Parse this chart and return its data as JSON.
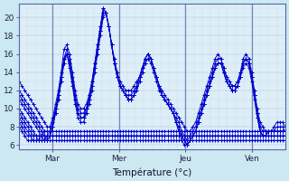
{
  "bg_color": "#cce8f0",
  "plot_bg_color": "#ddeef8",
  "grid_color": "#aabbcc",
  "line_color": "#0000cc",
  "xlabel": "Température (°c)",
  "xtick_labels": [
    "Mar",
    "Mer",
    "Jeu",
    "Ven"
  ],
  "ytick_values": [
    6,
    8,
    10,
    12,
    14,
    16,
    18,
    20
  ],
  "ylim": [
    5.5,
    21.5
  ],
  "xlim": [
    0,
    192
  ],
  "forecasts": [
    [
      13.0,
      12.5,
      12.0,
      11.5,
      11.0,
      10.5,
      10.0,
      9.5,
      9.0,
      8.5,
      8.0,
      8.0,
      9.0,
      10.5,
      12.0,
      14.0,
      16.5,
      17.0,
      16.0,
      14.0,
      12.0,
      10.5,
      10.0,
      10.0,
      10.5,
      11.5,
      13.0,
      15.0,
      17.0,
      19.0,
      21.0,
      20.5,
      19.0,
      17.0,
      15.5,
      14.0,
      13.0,
      12.5,
      12.0,
      12.0,
      12.0,
      12.5,
      13.0,
      13.5,
      14.5,
      15.5,
      16.0,
      15.5,
      14.5,
      13.5,
      12.5,
      12.0,
      11.5,
      11.0,
      10.5,
      10.0,
      9.5,
      9.0,
      8.5,
      8.0,
      7.5,
      7.5,
      8.0,
      8.5,
      9.5,
      10.5,
      11.5,
      12.5,
      13.5,
      14.5,
      15.5,
      16.0,
      15.5,
      14.5,
      13.5,
      13.0,
      12.5,
      12.5,
      13.0,
      14.0,
      15.5,
      16.0,
      15.5,
      14.0,
      12.0,
      10.0,
      8.5,
      8.0,
      7.5,
      7.5,
      7.5,
      8.0,
      8.5,
      8.5,
      8.5,
      8.0
    ],
    [
      12.0,
      11.5,
      11.0,
      10.5,
      10.0,
      9.5,
      9.0,
      8.5,
      8.0,
      7.5,
      7.5,
      7.5,
      8.5,
      10.0,
      11.5,
      13.5,
      15.5,
      16.5,
      15.5,
      13.5,
      11.5,
      10.0,
      9.5,
      9.5,
      10.0,
      11.0,
      12.5,
      14.5,
      16.5,
      18.5,
      20.5,
      20.5,
      19.0,
      17.0,
      15.0,
      13.5,
      12.5,
      12.0,
      11.5,
      11.5,
      11.5,
      12.0,
      12.5,
      13.5,
      14.5,
      15.5,
      16.0,
      15.5,
      14.5,
      13.5,
      12.5,
      11.5,
      11.0,
      10.5,
      10.0,
      9.5,
      9.0,
      8.5,
      7.5,
      7.0,
      6.5,
      7.0,
      7.5,
      8.0,
      9.0,
      10.0,
      11.0,
      12.0,
      13.0,
      14.0,
      15.0,
      15.5,
      15.5,
      14.5,
      13.5,
      13.0,
      12.5,
      12.5,
      13.0,
      14.0,
      15.0,
      15.5,
      15.0,
      13.5,
      11.5,
      9.5,
      8.0,
      7.5,
      7.5,
      7.5,
      7.5,
      7.5,
      8.0,
      8.0,
      8.0,
      7.5
    ],
    [
      11.0,
      10.5,
      10.0,
      9.5,
      9.0,
      8.5,
      8.0,
      7.5,
      7.0,
      6.5,
      6.5,
      7.0,
      8.0,
      9.5,
      11.0,
      13.0,
      15.0,
      16.0,
      15.0,
      13.0,
      11.0,
      9.5,
      9.0,
      9.0,
      9.5,
      10.5,
      12.0,
      14.0,
      16.0,
      18.0,
      20.0,
      20.5,
      19.0,
      17.0,
      15.0,
      13.5,
      12.5,
      12.0,
      11.5,
      11.0,
      11.0,
      11.5,
      12.0,
      13.0,
      14.0,
      15.0,
      15.5,
      15.5,
      14.5,
      13.5,
      12.5,
      11.5,
      11.0,
      10.5,
      10.0,
      9.5,
      8.5,
      8.0,
      7.0,
      6.5,
      6.0,
      6.5,
      7.0,
      7.5,
      8.5,
      9.5,
      10.5,
      11.5,
      12.5,
      13.5,
      14.5,
      15.0,
      15.0,
      14.0,
      13.0,
      12.5,
      12.0,
      12.0,
      12.5,
      13.5,
      15.0,
      15.5,
      15.0,
      13.5,
      11.5,
      9.5,
      7.5,
      7.0,
      7.0,
      7.5,
      7.5,
      7.5,
      7.5,
      7.5,
      7.5,
      7.5
    ],
    [
      10.0,
      9.5,
      9.0,
      8.5,
      8.0,
      7.5,
      7.0,
      6.5,
      6.5,
      6.5,
      7.0,
      7.5,
      8.5,
      10.0,
      11.5,
      13.5,
      15.5,
      16.0,
      14.5,
      12.5,
      10.5,
      9.0,
      8.5,
      8.5,
      9.5,
      11.0,
      12.5,
      14.5,
      16.5,
      18.5,
      20.5,
      20.5,
      19.0,
      17.0,
      15.0,
      13.5,
      12.5,
      12.0,
      11.5,
      11.0,
      11.0,
      11.5,
      12.0,
      13.0,
      14.0,
      15.0,
      15.5,
      15.0,
      14.0,
      13.0,
      12.0,
      11.5,
      11.0,
      10.5,
      10.0,
      9.5,
      8.5,
      7.5,
      6.5,
      6.0,
      6.0,
      6.5,
      7.0,
      7.5,
      8.5,
      9.5,
      10.5,
      11.5,
      12.5,
      13.5,
      14.5,
      15.0,
      15.0,
      14.0,
      13.0,
      12.5,
      12.0,
      12.0,
      12.5,
      13.5,
      14.5,
      15.0,
      14.5,
      13.0,
      11.0,
      9.0,
      7.5,
      7.0,
      7.0,
      7.5,
      7.5,
      7.5,
      7.5,
      7.5,
      7.5,
      7.5
    ],
    [
      9.0,
      8.5,
      8.0,
      7.5,
      7.0,
      6.5,
      6.5,
      6.5,
      7.0,
      7.5,
      7.5,
      7.5,
      7.5,
      7.5,
      7.5,
      7.5,
      7.5,
      7.5,
      7.5,
      7.5,
      7.5,
      7.5,
      7.5,
      7.5,
      7.5,
      7.5,
      7.5,
      7.5,
      7.5,
      7.5,
      7.5,
      7.5,
      7.5,
      7.5,
      7.5,
      7.5,
      7.5,
      7.5,
      7.5,
      7.5,
      7.5,
      7.5,
      7.5,
      7.5,
      7.5,
      7.5,
      7.5,
      7.5,
      7.5,
      7.5,
      7.5,
      7.5,
      7.5,
      7.5,
      7.5,
      7.5,
      7.5,
      7.5,
      7.5,
      7.5,
      7.5,
      7.5,
      7.5,
      7.5,
      7.5,
      7.5,
      7.5,
      7.5,
      7.5,
      7.5,
      7.5,
      7.5,
      7.5,
      7.5,
      7.5,
      7.5,
      7.5,
      7.5,
      7.5,
      7.5,
      7.5,
      7.5,
      7.5,
      7.5,
      7.5,
      7.5,
      7.5,
      7.5,
      7.5,
      7.5,
      7.5,
      7.5,
      7.5,
      7.5,
      7.5,
      7.5
    ],
    [
      8.5,
      8.0,
      7.5,
      7.0,
      7.0,
      7.0,
      7.0,
      7.0,
      7.0,
      7.0,
      7.0,
      7.0,
      7.0,
      7.0,
      7.0,
      7.0,
      7.0,
      7.0,
      7.0,
      7.0,
      7.0,
      7.0,
      7.0,
      7.0,
      7.0,
      7.0,
      7.0,
      7.0,
      7.0,
      7.0,
      7.0,
      7.0,
      7.0,
      7.0,
      7.0,
      7.0,
      7.0,
      7.0,
      7.0,
      7.0,
      7.0,
      7.0,
      7.0,
      7.0,
      7.0,
      7.0,
      7.0,
      7.0,
      7.0,
      7.0,
      7.0,
      7.0,
      7.0,
      7.0,
      7.0,
      7.0,
      7.0,
      7.0,
      7.0,
      7.0,
      7.0,
      7.0,
      7.0,
      7.0,
      7.0,
      7.0,
      7.0,
      7.0,
      7.0,
      7.0,
      7.0,
      7.0,
      7.0,
      7.0,
      7.0,
      7.0,
      7.0,
      7.0,
      7.0,
      7.0,
      7.0,
      7.0,
      7.0,
      7.0,
      7.0,
      7.0,
      7.0,
      7.0,
      7.0,
      7.0,
      7.0,
      7.0,
      7.0,
      7.0,
      7.0,
      7.0
    ],
    [
      8.0,
      7.5,
      7.0,
      6.5,
      6.5,
      6.5,
      6.5,
      6.5,
      6.5,
      6.5,
      6.5,
      6.5,
      6.5,
      6.5,
      6.5,
      6.5,
      6.5,
      6.5,
      6.5,
      6.5,
      6.5,
      6.5,
      6.5,
      6.5,
      6.5,
      6.5,
      6.5,
      6.5,
      6.5,
      6.5,
      6.5,
      6.5,
      6.5,
      6.5,
      6.5,
      6.5,
      6.5,
      6.5,
      6.5,
      6.5,
      6.5,
      6.5,
      6.5,
      6.5,
      6.5,
      6.5,
      6.5,
      6.5,
      6.5,
      6.5,
      6.5,
      6.5,
      6.5,
      6.5,
      6.5,
      6.5,
      6.5,
      6.5,
      6.5,
      6.5,
      6.5,
      6.5,
      6.5,
      6.5,
      6.5,
      6.5,
      6.5,
      6.5,
      6.5,
      6.5,
      6.5,
      6.5,
      6.5,
      6.5,
      6.5,
      6.5,
      6.5,
      6.5,
      6.5,
      6.5,
      6.5,
      6.5,
      6.5,
      6.5,
      6.5,
      6.5,
      6.5,
      6.5,
      6.5,
      6.5,
      6.5,
      6.5,
      6.5,
      6.5,
      6.5,
      6.5
    ],
    [
      11.5,
      11.0,
      10.5,
      10.0,
      9.5,
      9.0,
      8.5,
      8.0,
      7.5,
      7.0,
      6.5,
      7.0,
      8.0,
      9.5,
      11.0,
      13.0,
      15.0,
      16.0,
      15.0,
      13.0,
      11.0,
      9.5,
      9.0,
      9.0,
      10.0,
      11.5,
      13.0,
      15.0,
      17.0,
      19.0,
      21.0,
      20.5,
      19.0,
      17.0,
      15.0,
      13.5,
      12.5,
      12.0,
      11.5,
      11.0,
      11.0,
      11.5,
      12.5,
      13.5,
      14.5,
      15.5,
      16.0,
      15.5,
      14.5,
      13.5,
      12.5,
      11.5,
      11.0,
      10.5,
      10.0,
      9.5,
      8.5,
      7.5,
      7.0,
      6.5,
      6.0,
      6.5,
      7.0,
      7.5,
      8.5,
      9.5,
      10.5,
      11.5,
      12.5,
      13.5,
      14.5,
      15.0,
      15.0,
      14.0,
      13.0,
      12.5,
      12.0,
      12.0,
      12.5,
      13.5,
      15.0,
      15.5,
      15.0,
      13.5,
      11.5,
      9.5,
      7.5,
      7.0,
      7.0,
      7.5,
      7.5,
      7.5,
      7.5,
      7.5,
      7.5,
      7.5
    ],
    [
      9.5,
      9.0,
      8.5,
      8.0,
      7.5,
      7.0,
      7.0,
      7.0,
      7.0,
      7.0,
      7.0,
      7.0,
      7.0,
      7.0,
      7.0,
      7.0,
      7.0,
      7.0,
      7.0,
      7.0,
      7.0,
      7.0,
      7.0,
      7.0,
      7.0,
      7.0,
      7.0,
      7.0,
      7.0,
      7.0,
      7.0,
      7.0,
      7.0,
      7.0,
      7.0,
      7.0,
      7.0,
      7.0,
      7.0,
      7.0,
      7.0,
      7.0,
      7.0,
      7.0,
      7.0,
      7.0,
      7.0,
      7.0,
      7.0,
      7.0,
      7.0,
      7.0,
      7.0,
      7.0,
      7.0,
      7.0,
      7.0,
      7.0,
      7.0,
      7.0,
      7.0,
      7.0,
      7.0,
      7.0,
      7.0,
      7.0,
      7.0,
      7.0,
      7.0,
      7.0,
      7.0,
      7.0,
      7.0,
      7.0,
      7.0,
      7.0,
      7.0,
      7.0,
      7.0,
      7.0,
      7.0,
      7.0,
      7.0,
      7.0,
      7.0,
      7.0,
      7.0,
      7.0,
      7.0,
      7.0,
      7.0,
      7.0,
      7.0,
      7.0,
      7.0,
      7.0
    ]
  ]
}
